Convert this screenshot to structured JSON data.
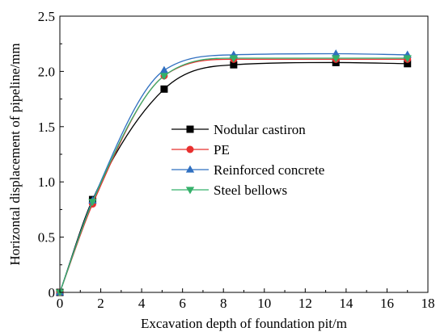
{
  "chart_data": {
    "type": "line",
    "xlabel": "Excavation depth of foundation pit/m",
    "ylabel": "Horizontal displacement of pipeline/mm",
    "xlim": [
      0,
      18
    ],
    "ylim": [
      0,
      2.5
    ],
    "xticks": [
      "0",
      "2",
      "4",
      "6",
      "8",
      "10",
      "12",
      "14",
      "16",
      "18"
    ],
    "yticks": [
      "0",
      "0.5",
      "1.0",
      "1.5",
      "2.0",
      "2.5"
    ],
    "grid": false,
    "legend_position": "center-right",
    "x": [
      0,
      1.6,
      5.1,
      8.5,
      13.5,
      17
    ],
    "series": [
      {
        "name": "Nodular castiron",
        "values": [
          0,
          0.84,
          1.84,
          2.06,
          2.08,
          2.07
        ],
        "color": "#000000",
        "marker": "square"
      },
      {
        "name": "PE",
        "values": [
          0,
          0.8,
          1.96,
          2.11,
          2.11,
          2.11
        ],
        "color": "#e8302f",
        "marker": "circle"
      },
      {
        "name": "Reinforced concrete",
        "values": [
          0,
          0.83,
          2.01,
          2.15,
          2.16,
          2.15
        ],
        "color": "#2f6fc0",
        "marker": "triangle-up"
      },
      {
        "name": "Steel bellows",
        "values": [
          0,
          0.82,
          1.96,
          2.12,
          2.12,
          2.12
        ],
        "color": "#35b06a",
        "marker": "triangle-down"
      }
    ]
  }
}
